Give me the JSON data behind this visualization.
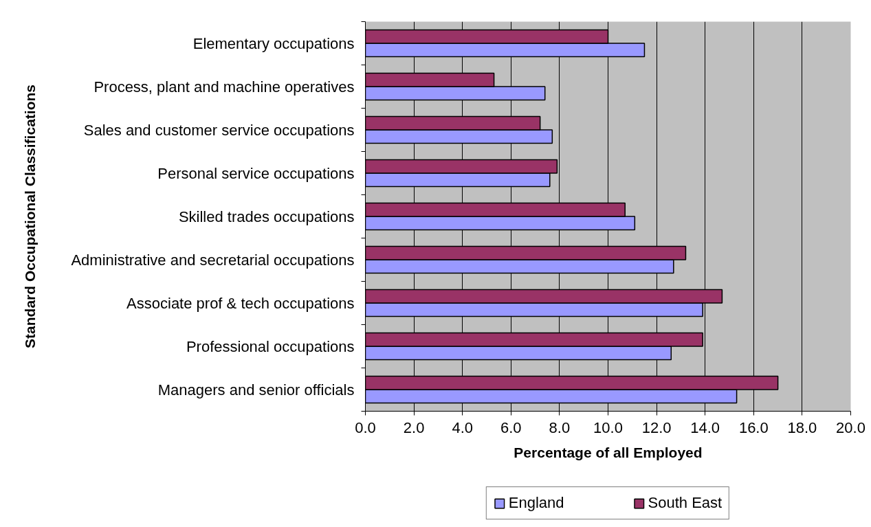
{
  "chart_data": {
    "type": "bar",
    "orientation": "horizontal",
    "xlabel": "Percentage of all Employed",
    "ylabel": "Standard Occupational Classifications",
    "categories": [
      "Elementary occupations",
      "Process, plant and machine operatives",
      "Sales and customer service occupations",
      "Personal service occupations",
      "Skilled trades occupations",
      "Administrative and secretarial occupations",
      "Associate prof & tech occupations",
      "Professional occupations",
      "Managers and senior officials"
    ],
    "series": [
      {
        "name": "England",
        "color": "#9999ff",
        "values": [
          11.5,
          7.4,
          7.7,
          7.6,
          11.1,
          12.7,
          13.9,
          12.6,
          15.3
        ]
      },
      {
        "name": "South East",
        "color": "#993366",
        "values": [
          10.0,
          5.3,
          7.2,
          7.9,
          10.7,
          13.2,
          14.7,
          13.9,
          17.0
        ]
      }
    ],
    "xlim": [
      0,
      20
    ],
    "xticks": [
      {
        "value": 0,
        "label": "0.0"
      },
      {
        "value": 2,
        "label": "2.0"
      },
      {
        "value": 4,
        "label": "4.0"
      },
      {
        "value": 6,
        "label": "6.0"
      },
      {
        "value": 8,
        "label": "8.0"
      },
      {
        "value": 10,
        "label": "10.0"
      },
      {
        "value": 12,
        "label": "12.0"
      },
      {
        "value": 14,
        "label": "14.0"
      },
      {
        "value": 16,
        "label": "16.0"
      },
      {
        "value": 18,
        "label": "18.0"
      },
      {
        "value": 20,
        "label": "20.0"
      }
    ],
    "grid": "x",
    "legend": "bottom"
  }
}
